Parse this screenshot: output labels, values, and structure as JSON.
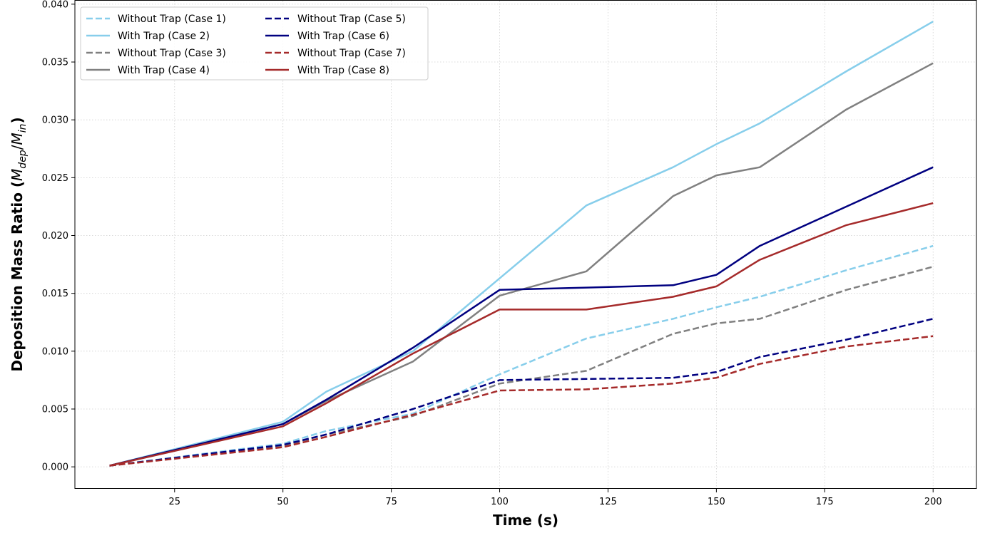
{
  "chart_data": {
    "type": "line",
    "title": "",
    "xlabel": "Time (s)",
    "ylabel_main": "Deposition Mass Ratio (",
    "ylabel_M1": "M",
    "ylabel_sub1": "dep",
    "ylabel_slash": "/",
    "ylabel_M2": "M",
    "ylabel_sub2": "in",
    "ylabel_close": ")",
    "xlim": [
      2,
      210
    ],
    "ylim": [
      -0.0019,
      0.0403
    ],
    "xticks": [
      25,
      50,
      75,
      100,
      125,
      150,
      175,
      200
    ],
    "xtick_labels": [
      "25",
      "50",
      "75",
      "100",
      "125",
      "150",
      "175",
      "200"
    ],
    "yticks": [
      0,
      0.005,
      0.01,
      0.015,
      0.02,
      0.025,
      0.03,
      0.035,
      0.04
    ],
    "ytick_labels": [
      "0.000",
      "0.005",
      "0.010",
      "0.015",
      "0.020",
      "0.025",
      "0.030",
      "0.035",
      "0.040"
    ],
    "grid": true,
    "legend_position": "top-left",
    "x": [
      10,
      50,
      60,
      80,
      100,
      120,
      140,
      150,
      160,
      180,
      200
    ],
    "series": [
      {
        "name": "Without Trap (Case 1)",
        "color": "#87ceeb",
        "dashed": true,
        "values": [
          0.0001,
          0.002,
          0.0031,
          0.0046,
          0.008,
          0.0111,
          0.0128,
          0.0138,
          0.0147,
          0.017,
          0.0191
        ]
      },
      {
        "name": "With Trap (Case 2)",
        "color": "#87ceeb",
        "dashed": false,
        "values": [
          0.0001,
          0.0039,
          0.0065,
          0.01,
          0.0163,
          0.0226,
          0.0259,
          0.0279,
          0.0297,
          0.0342,
          0.0385
        ]
      },
      {
        "name": "Without Trap (Case 3)",
        "color": "#808080",
        "dashed": true,
        "values": [
          0.0001,
          0.0018,
          0.0028,
          0.0044,
          0.0072,
          0.0083,
          0.0115,
          0.0124,
          0.0128,
          0.0153,
          0.0173
        ]
      },
      {
        "name": "With Trap (Case 4)",
        "color": "#808080",
        "dashed": false,
        "values": [
          0.0001,
          0.0037,
          0.0057,
          0.0091,
          0.0148,
          0.0169,
          0.0234,
          0.0252,
          0.0259,
          0.0309,
          0.0349
        ]
      },
      {
        "name": "Without Trap (Case 5)",
        "color": "#000080",
        "dashed": true,
        "values": [
          0.0001,
          0.0019,
          0.0028,
          0.005,
          0.0075,
          0.0076,
          0.0077,
          0.0082,
          0.0095,
          0.011,
          0.0128
        ]
      },
      {
        "name": "With Trap (Case 6)",
        "color": "#000080",
        "dashed": false,
        "values": [
          0.0001,
          0.0037,
          0.0058,
          0.0103,
          0.0153,
          0.0155,
          0.0157,
          0.0166,
          0.0191,
          0.0225,
          0.0259
        ]
      },
      {
        "name": "Without Trap (Case 7)",
        "color": "#a52a2a",
        "dashed": true,
        "values": [
          0.0001,
          0.0017,
          0.0026,
          0.0045,
          0.0066,
          0.0067,
          0.0072,
          0.0077,
          0.0089,
          0.0104,
          0.0113
        ]
      },
      {
        "name": "With Trap (Case 8)",
        "color": "#a52a2a",
        "dashed": false,
        "values": [
          0.0001,
          0.0035,
          0.0055,
          0.0098,
          0.0136,
          0.0136,
          0.0147,
          0.0156,
          0.0179,
          0.0209,
          0.0228
        ]
      }
    ]
  }
}
